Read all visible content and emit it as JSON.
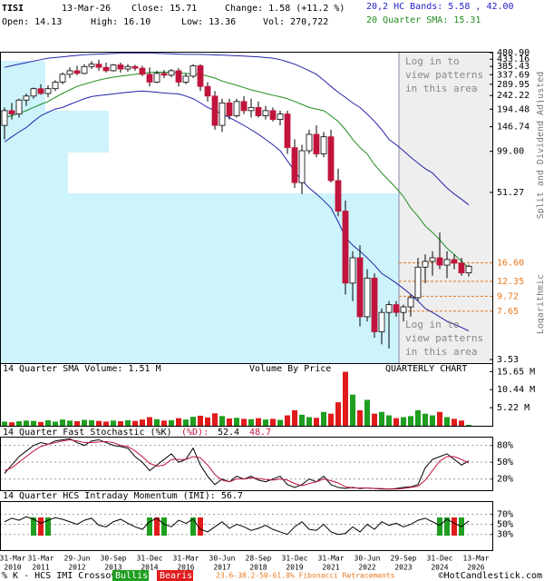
{
  "header": {
    "symbol": "TISI",
    "date": "13-Mar-26",
    "close": "Close: 15.71",
    "change": "Change: 1.58 (+11.2 %)",
    "bands": "20,2 HC Bands: 5.58 , 42.00",
    "open": "Open: 14.13",
    "high": "High: 16.10",
    "low": "Low: 13.36",
    "volume": "Vol: 270,722",
    "sma": "20 Quarter SMA: 15.31"
  },
  "chart_data": [
    {
      "type": "candlestick",
      "log_scale": true,
      "ylim": [
        3.53,
        480.9
      ],
      "yticks": [
        {
          "value": 480.9,
          "label": "480.90"
        },
        433.16,
        385.43,
        337.69,
        289.95,
        242.22,
        194.48,
        146.74,
        {
          "value": 99,
          "label": "99.00"
        },
        51.27,
        3.53
      ],
      "up_color": "#ffffff",
      "down_color": "#c0143c",
      "open": [
        150,
        190,
        180,
        225,
        240,
        270,
        250,
        270,
        300,
        340,
        360,
        345,
        385,
        400,
        380,
        360,
        395,
        370,
        385,
        375,
        340,
        300,
        345,
        335,
        360,
        300,
        330,
        390,
        280,
        240,
        150,
        215,
        175,
        220,
        190,
        200,
        175,
        190,
        165,
        180,
        105,
        60,
        100,
        130,
        95,
        125,
        62,
        38,
        12,
        18,
        7,
        13,
        5.5,
        7.5,
        8.5,
        7.5,
        8.2,
        9.5,
        15.5,
        17,
        18,
        16,
        17.5,
        16.5,
        14.13
      ],
      "high": [
        200,
        215,
        230,
        250,
        275,
        290,
        285,
        310,
        350,
        380,
        390,
        400,
        420,
        430,
        410,
        400,
        410,
        400,
        395,
        390,
        380,
        360,
        365,
        370,
        375,
        345,
        400,
        400,
        300,
        260,
        230,
        230,
        230,
        240,
        230,
        220,
        205,
        200,
        190,
        190,
        120,
        110,
        140,
        150,
        135,
        140,
        75,
        45,
        20,
        22,
        15,
        14,
        8,
        9,
        9,
        8.5,
        10,
        18,
        19,
        20,
        27,
        20,
        19,
        18,
        16.1
      ],
      "low": [
        120,
        165,
        170,
        205,
        230,
        245,
        235,
        260,
        290,
        320,
        335,
        340,
        370,
        360,
        350,
        355,
        350,
        355,
        360,
        330,
        280,
        295,
        320,
        325,
        280,
        290,
        320,
        260,
        220,
        140,
        135,
        165,
        170,
        180,
        170,
        170,
        165,
        160,
        150,
        95,
        55,
        50,
        95,
        90,
        90,
        60,
        35,
        10,
        9,
        6,
        6.5,
        5,
        4.5,
        4.2,
        7,
        6.5,
        7,
        9,
        12,
        13.5,
        15,
        13,
        15,
        13.5,
        13.36
      ],
      "close": [
        190,
        180,
        225,
        240,
        270,
        250,
        270,
        300,
        340,
        360,
        345,
        385,
        400,
        380,
        360,
        395,
        370,
        385,
        375,
        340,
        300,
        345,
        335,
        360,
        300,
        330,
        390,
        280,
        240,
        150,
        215,
        175,
        220,
        190,
        200,
        175,
        190,
        165,
        180,
        105,
        60,
        100,
        130,
        95,
        125,
        62,
        38,
        12,
        18,
        7,
        13,
        5.5,
        7.5,
        8.5,
        7.5,
        8.2,
        9.5,
        15.5,
        17,
        18,
        16,
        17.5,
        16.5,
        14.13,
        15.71
      ],
      "lines": [
        {
          "color": "#1e8c1e",
          "values": [
            170,
            175,
            182,
            190,
            200,
            210,
            220,
            235,
            250,
            265,
            280,
            290,
            300,
            310,
            318,
            325,
            330,
            335,
            340,
            345,
            350,
            352,
            352,
            350,
            348,
            345,
            342,
            340,
            330,
            320,
            305,
            295,
            285,
            275,
            265,
            258,
            250,
            243,
            237,
            230,
            220,
            210,
            200,
            195,
            190,
            175,
            160,
            140,
            120,
            105,
            95,
            80,
            70,
            62,
            55,
            48,
            40,
            35,
            30,
            27,
            24,
            21,
            19,
            17,
            15.31
          ]
        },
        {
          "color": "#2323a8",
          "values": [
            380,
            390,
            400,
            410,
            420,
            430,
            440,
            445,
            450,
            455,
            460,
            465,
            468,
            470,
            472,
            475,
            478,
            478,
            478,
            478,
            478,
            476,
            474,
            472,
            470,
            468,
            468,
            468,
            466,
            464,
            462,
            460,
            458,
            455,
            452,
            450,
            445,
            440,
            430,
            415,
            400,
            380,
            360,
            340,
            310,
            280,
            255,
            235,
            215,
            200,
            180,
            160,
            140,
            120,
            110,
            100,
            90,
            82,
            75,
            70,
            62,
            55,
            50,
            46,
            42
          ]
        },
        {
          "color": "#2323a8",
          "values": [
            115,
            125,
            135,
            145,
            160,
            175,
            185,
            195,
            200,
            210,
            220,
            230,
            238,
            242,
            245,
            248,
            252,
            255,
            258,
            260,
            258,
            255,
            252,
            250,
            248,
            240,
            230,
            215,
            200,
            190,
            180,
            170,
            160,
            150,
            140,
            130,
            120,
            110,
            100,
            85,
            72,
            62,
            55,
            50,
            45,
            40,
            32,
            25,
            22,
            20,
            18,
            16,
            14,
            13,
            12,
            11,
            10,
            9,
            8,
            7.5,
            7,
            6.5,
            6.2,
            5.9,
            5.58
          ]
        }
      ],
      "levels": [
        {
          "value": 16.6,
          "label": "16.60"
        },
        12.35,
        9.72,
        7.65
      ],
      "level_color": "#e8791e",
      "notes": [
        [
          "Log in to",
          "view patterns",
          "in this area"
        ],
        [
          "Log in to",
          "view patterns",
          "in this area"
        ]
      ],
      "side_labels": [
        "Split and Dividend Adjusted",
        "Logarithmic"
      ]
    },
    {
      "type": "bar",
      "title": "14 Quarter SMA Volume: 1.51 M",
      "subtitle": "Volume By Price",
      "note": "QUARTERLY CHART",
      "up_color": "#1f9e1f",
      "down_color": "#e01b1b",
      "ylim": [
        0,
        16.8
      ],
      "yticks": [
        {
          "value": 15.65,
          "label": "15.65 M"
        },
        {
          "value": 10.44,
          "label": "10.44 M"
        },
        {
          "value": 5.22,
          "label": "5.22 M"
        }
      ],
      "values": [
        1.2,
        1.0,
        1.3,
        1.5,
        1.4,
        1.1,
        1.6,
        1.2,
        1.8,
        1.5,
        1.3,
        1.7,
        1.6,
        1.4,
        1.2,
        1.5,
        1.3,
        1.6,
        1.4,
        1.8,
        2.5,
        1.9,
        1.5,
        1.6,
        2.2,
        1.8,
        2.6,
        2.9,
        2.4,
        3.6,
        2.8,
        2.1,
        2.3,
        2.0,
        1.9,
        2.2,
        1.8,
        2.0,
        1.7,
        3.0,
        4.5,
        3.2,
        2.5,
        2.3,
        4.0,
        3.5,
        6.8,
        15.6,
        9.0,
        4.5,
        7.5,
        3.5,
        4.0,
        3.0,
        2.2,
        2.5,
        2.8,
        4.5,
        3.5,
        3.0,
        4.0,
        2.5,
        2.0,
        1.5,
        0.27
      ]
    },
    {
      "type": "line",
      "title": [
        "14 Quarter Fast Stochastic (%K)",
        "(%D):",
        "52.4",
        "48.7"
      ],
      "ylim": [
        0,
        94
      ],
      "yticks": [
        {
          "value": 80,
          "label": "80%"
        },
        {
          "value": 50,
          "label": "50%"
        },
        {
          "value": 20,
          "label": "20%"
        }
      ],
      "series": [
        {
          "color": "#000000",
          "values": [
            30,
            45,
            60,
            70,
            80,
            85,
            82,
            88,
            90,
            92,
            85,
            80,
            88,
            90,
            85,
            80,
            78,
            75,
            60,
            50,
            35,
            45,
            55,
            65,
            50,
            55,
            75,
            45,
            25,
            10,
            20,
            15,
            25,
            20,
            25,
            18,
            15,
            20,
            25,
            10,
            5,
            10,
            20,
            15,
            25,
            10,
            5,
            3,
            5,
            3,
            4,
            3,
            2,
            2,
            3,
            5,
            6,
            10,
            40,
            55,
            60,
            65,
            55,
            45,
            52.4
          ]
        },
        {
          "color": "#c0143c",
          "values": [
            35,
            40,
            50,
            60,
            70,
            78,
            82,
            85,
            88,
            90,
            88,
            85,
            85,
            86,
            87,
            85,
            80,
            78,
            70,
            60,
            48,
            43,
            45,
            55,
            55,
            55,
            60,
            58,
            45,
            28,
            18,
            15,
            20,
            20,
            22,
            21,
            19,
            18,
            20,
            18,
            12,
            8,
            12,
            15,
            20,
            17,
            13,
            6,
            4,
            4,
            4,
            3,
            3,
            2,
            2,
            3,
            5,
            7,
            18,
            35,
            52,
            60,
            60,
            55,
            48.7
          ]
        }
      ]
    },
    {
      "type": "line",
      "title": "14 Quarter HCS Intraday Momentum (IMI): 56.7",
      "ylim": [
        -1,
        94
      ],
      "yticks": [
        {
          "value": 70,
          "label": "70%"
        },
        {
          "value": 50,
          "label": "50%"
        },
        {
          "value": 30,
          "label": "30%"
        }
      ],
      "series": [
        {
          "color": "#000000",
          "values": [
            55,
            62,
            58,
            65,
            60,
            52,
            58,
            63,
            60,
            55,
            50,
            58,
            62,
            48,
            45,
            55,
            60,
            52,
            45,
            40,
            55,
            62,
            50,
            45,
            58,
            52,
            60,
            40,
            35,
            45,
            55,
            42,
            50,
            45,
            38,
            42,
            48,
            40,
            35,
            30,
            45,
            55,
            40,
            38,
            50,
            35,
            30,
            32,
            45,
            35,
            50,
            40,
            55,
            48,
            52,
            45,
            50,
            58,
            62,
            55,
            48,
            60,
            52,
            45,
            56.7
          ]
        }
      ],
      "crossovers": {
        "bullish": [
          4,
          6,
          20,
          22,
          26,
          60,
          61,
          63
        ],
        "bearish": [
          5,
          21,
          27,
          62
        ]
      }
    }
  ],
  "x_labels": [
    [
      "31-Mar",
      "2010"
    ],
    [
      "31-Mar",
      "2011"
    ],
    [
      "29-Jun",
      "2012"
    ],
    [
      "30-Sep",
      "2013"
    ],
    [
      "31-Dec",
      "2014"
    ],
    [
      "31-Mar",
      "2016"
    ],
    [
      "30-Jun",
      "2017"
    ],
    [
      "28-Sep",
      "2018"
    ],
    [
      "31-Dec",
      "2019"
    ],
    [
      "31-Mar",
      "2021"
    ],
    [
      "30-Jun",
      "2022"
    ],
    [
      "29-Sep",
      "2023"
    ],
    [
      "31-Dec",
      "2024"
    ],
    [
      "13-Mar",
      "2026"
    ]
  ],
  "footer": {
    "legend": "% K - HCS IMI Crossover,",
    "bullish": "Bullish",
    "bearish": "Bearish",
    "fibonacci": "23.6-38.2-50-61.8% Fibonacci Retracements",
    "credit": "©HotCandlestick.com"
  }
}
